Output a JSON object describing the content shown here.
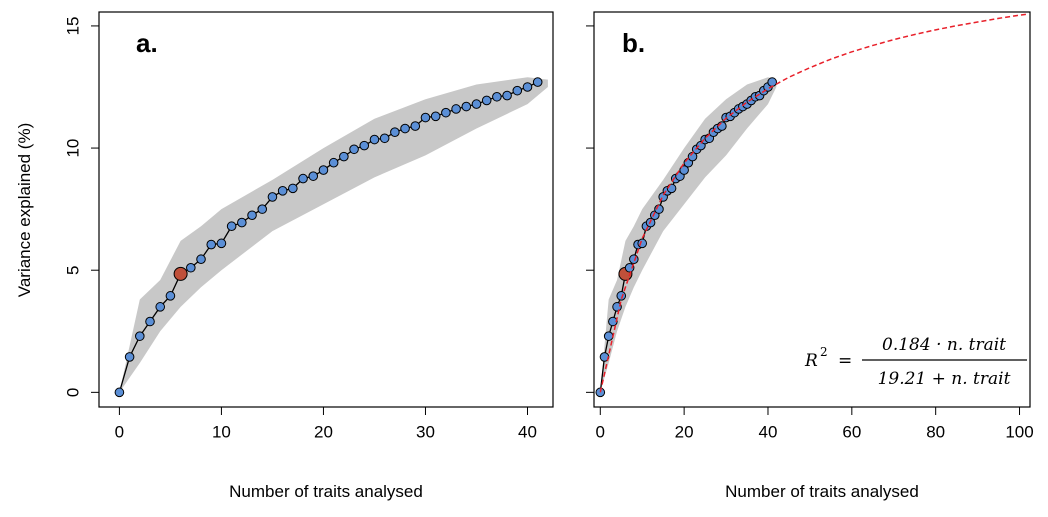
{
  "chart_data": [
    {
      "type": "line",
      "panel_label": "a.",
      "x_label": "Number of traits analysed",
      "y_label": "Variance explained (%)",
      "x": [
        0,
        1,
        2,
        3,
        4,
        5,
        6,
        7,
        8,
        9,
        10,
        11,
        12,
        13,
        14,
        15,
        16,
        17,
        18,
        19,
        20,
        21,
        22,
        23,
        24,
        25,
        26,
        27,
        28,
        29,
        30,
        31,
        32,
        33,
        34,
        35,
        36,
        37,
        38,
        39,
        40,
        41
      ],
      "values": [
        0,
        1.45,
        2.3,
        2.9,
        3.5,
        3.95,
        4.85,
        5.1,
        5.45,
        6.05,
        6.1,
        6.8,
        6.95,
        7.25,
        7.5,
        8.0,
        8.25,
        8.35,
        8.75,
        8.85,
        9.1,
        9.4,
        9.65,
        9.95,
        10.1,
        10.35,
        10.4,
        10.65,
        10.8,
        10.9,
        11.25,
        11.3,
        11.45,
        11.6,
        11.7,
        11.8,
        11.95,
        12.1,
        12.15,
        12.35,
        12.5,
        12.7
      ],
      "color": "#5b8fd6",
      "line_color": "#000000",
      "highlight_index": 6,
      "highlight_color": "#c0503a",
      "band": {
        "x": [
          0,
          2,
          4,
          6,
          8,
          10,
          15,
          20,
          25,
          30,
          35,
          40,
          42
        ],
        "lower": [
          0,
          1.2,
          2.5,
          3.5,
          4.3,
          5.0,
          6.6,
          7.7,
          8.8,
          9.7,
          10.8,
          11.8,
          12.5
        ],
        "upper": [
          0,
          3.8,
          4.6,
          6.2,
          6.8,
          7.5,
          8.7,
          10.0,
          11.2,
          12.0,
          12.6,
          12.9,
          12.8
        ],
        "color": "#c8c8c8"
      },
      "xlim": [
        -2,
        42.5
      ],
      "ylim": [
        -0.6,
        15.57
      ],
      "xticks": [
        0,
        10,
        20,
        30,
        40
      ],
      "yticks": [
        0,
        5,
        10,
        15
      ],
      "show_ytick_labels": true
    },
    {
      "type": "line",
      "panel_label": "b.",
      "x_label": "Number of traits analysed",
      "x": [
        0,
        1,
        2,
        3,
        4,
        5,
        6,
        7,
        8,
        9,
        10,
        11,
        12,
        13,
        14,
        15,
        16,
        17,
        18,
        19,
        20,
        21,
        22,
        23,
        24,
        25,
        26,
        27,
        28,
        29,
        30,
        31,
        32,
        33,
        34,
        35,
        36,
        37,
        38,
        39,
        40,
        41
      ],
      "values": [
        0,
        1.45,
        2.3,
        2.9,
        3.5,
        3.95,
        4.85,
        5.1,
        5.45,
        6.05,
        6.1,
        6.8,
        6.95,
        7.25,
        7.5,
        8.0,
        8.25,
        8.35,
        8.75,
        8.85,
        9.1,
        9.4,
        9.65,
        9.95,
        10.1,
        10.35,
        10.4,
        10.65,
        10.8,
        10.9,
        11.25,
        11.3,
        11.45,
        11.6,
        11.7,
        11.8,
        11.95,
        12.1,
        12.15,
        12.35,
        12.5,
        12.7
      ],
      "color": "#5b8fd6",
      "line_color": "#000000",
      "highlight_index": 6,
      "highlight_color": "#c0503a",
      "band": {
        "x": [
          0,
          2,
          4,
          6,
          8,
          10,
          15,
          20,
          25,
          30,
          35,
          40,
          42
        ],
        "lower": [
          0,
          1.2,
          2.5,
          3.5,
          4.3,
          5.0,
          6.6,
          7.7,
          8.8,
          9.7,
          10.8,
          11.8,
          12.5
        ],
        "upper": [
          0,
          3.8,
          4.6,
          6.2,
          6.8,
          7.5,
          8.7,
          10.0,
          11.2,
          12.0,
          12.6,
          12.9,
          12.8
        ],
        "color": "#c8c8c8"
      },
      "fit": {
        "x": [
          0,
          5,
          10,
          15,
          20,
          25,
          30,
          35,
          40,
          45,
          50,
          55,
          60,
          65,
          70,
          75,
          80,
          85,
          90,
          95,
          100,
          102
        ],
        "values": [
          0,
          3.8,
          6.3,
          8.07,
          9.39,
          10.4,
          11.22,
          11.88,
          12.43,
          12.9,
          13.29,
          13.64,
          13.94,
          14.2,
          14.44,
          14.65,
          14.84,
          15.01,
          15.16,
          15.31,
          15.44,
          15.48
        ],
        "color": "#e8202a"
      },
      "formula": {
        "lhs": "R",
        "sup": "2",
        "eq": "=",
        "numerator": "0.184 · n. trait",
        "denominator": "19.21 + n. trait"
      },
      "xlim": [
        -1.5,
        102.5
      ],
      "ylim": [
        -0.6,
        15.57
      ],
      "xticks": [
        0,
        20,
        40,
        60,
        80,
        100
      ],
      "yticks": [
        0,
        5,
        10,
        15
      ],
      "show_ytick_labels": false
    }
  ]
}
